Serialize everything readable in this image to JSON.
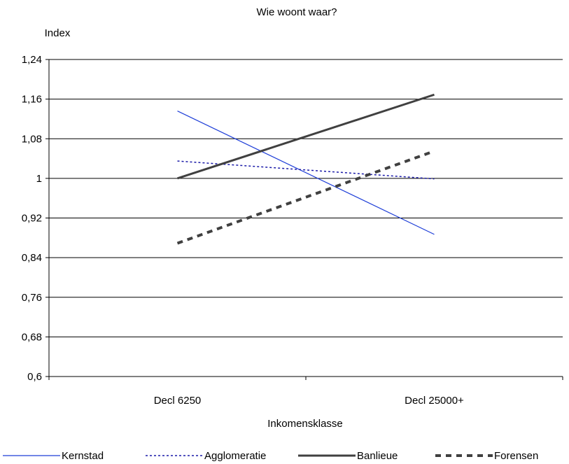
{
  "chart_data": {
    "type": "line",
    "title": "Wie woont waar?",
    "ylabel": "Index",
    "xlabel": "Inkomensklasse",
    "categories": [
      "Decl 6250",
      "Decl 25000+"
    ],
    "y_ticks": [
      "0,6",
      "0,68",
      "0,76",
      "0,84",
      "0,92",
      "1",
      "1,08",
      "1,16",
      "1,24"
    ],
    "ylim": [
      0.6,
      1.24
    ],
    "grid": true,
    "legend_position": "bottom",
    "series": [
      {
        "name": "Kernstad",
        "color": "#1f3fd8",
        "style": "solid-thin",
        "values": [
          1.136,
          0.887
        ]
      },
      {
        "name": "Agglomeratie",
        "color": "#1a1aa8",
        "style": "dotted",
        "values": [
          1.035,
          0.999
        ]
      },
      {
        "name": "Banlieue",
        "color": "#404040",
        "style": "solid-thick",
        "values": [
          1.0,
          1.169
        ]
      },
      {
        "name": "Forensen",
        "color": "#404040",
        "style": "dashed-thick",
        "values": [
          0.869,
          1.055
        ]
      }
    ]
  }
}
